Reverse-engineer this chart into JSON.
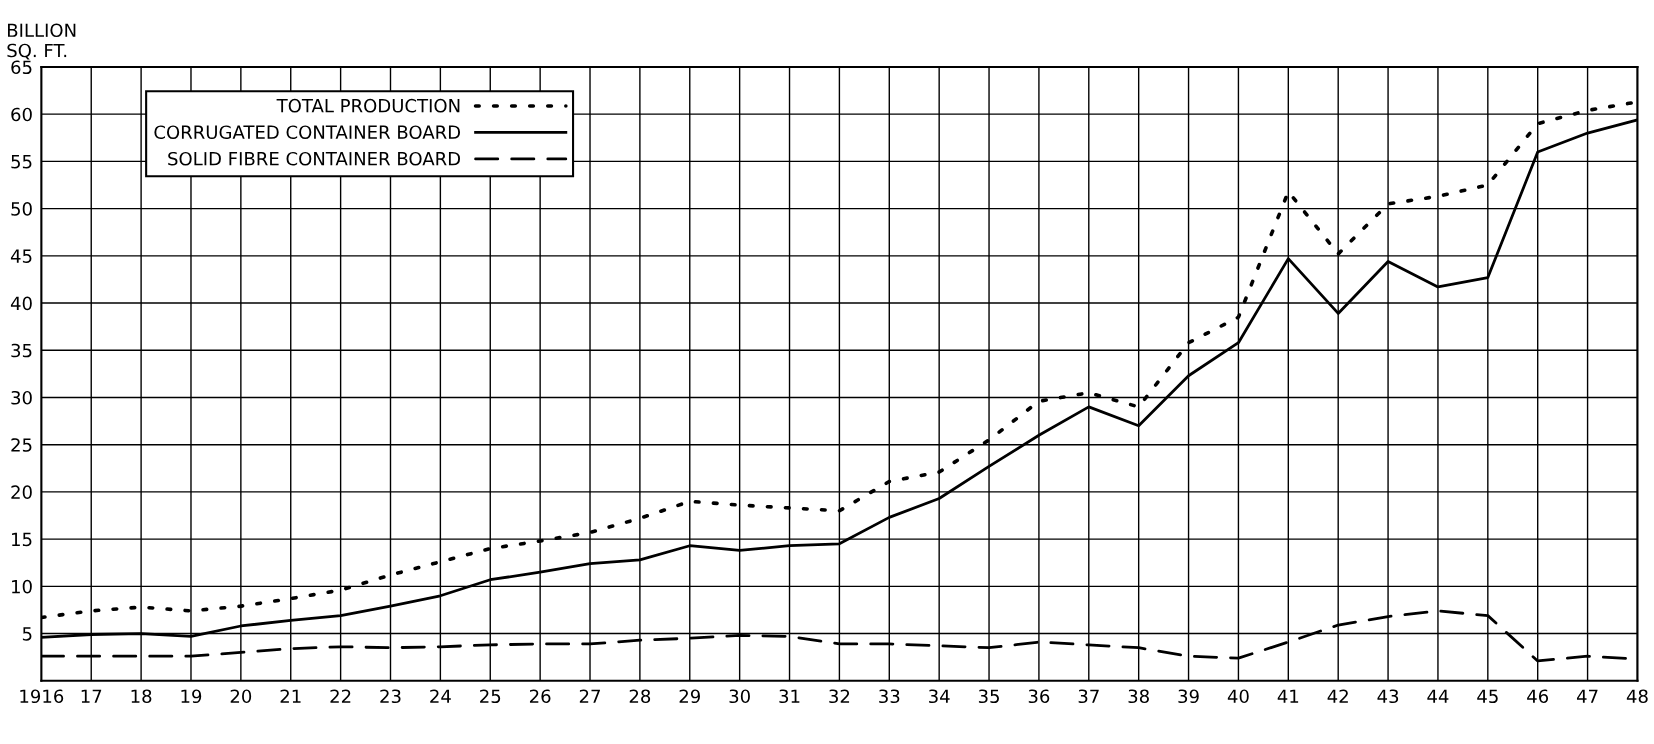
{
  "chart_data": {
    "type": "line",
    "ylabel": "BILLION\nSQ. FT.",
    "x": [
      1916,
      1917,
      1918,
      1919,
      1920,
      1921,
      1922,
      1923,
      1924,
      1925,
      1926,
      1927,
      1928,
      1929,
      1930,
      1931,
      1932,
      1933,
      1934,
      1935,
      1936,
      1937,
      1938,
      1939,
      1940,
      1941,
      1942,
      1943,
      1944,
      1945,
      1946,
      1947,
      1948
    ],
    "series": [
      {
        "name": "TOTAL PRODUCTION",
        "color": "#000000",
        "line_style": "dotted",
        "values": [
          6.7,
          7.4,
          7.8,
          7.4,
          7.9,
          8.7,
          9.6,
          11.2,
          12.6,
          14.0,
          14.8,
          15.7,
          17.2,
          19.0,
          18.6,
          18.3,
          18.0,
          21.1,
          22.1,
          25.5,
          29.6,
          30.5,
          29.0,
          35.8,
          38.5,
          51.8,
          45.2,
          50.5,
          51.3,
          52.5,
          59.0,
          60.4,
          61.3
        ]
      },
      {
        "name": "CORRUGATED CONTAINER BOARD",
        "color": "#000000",
        "line_style": "solid",
        "values": [
          4.6,
          4.9,
          5.0,
          4.7,
          5.8,
          6.4,
          6.9,
          7.9,
          9.0,
          10.7,
          11.5,
          12.4,
          12.8,
          14.3,
          13.8,
          14.3,
          14.5,
          17.3,
          19.3,
          22.7,
          26.0,
          29.0,
          27.0,
          32.3,
          35.8,
          44.7,
          38.9,
          44.4,
          41.7,
          42.7,
          56.0,
          58.0,
          59.4
        ]
      },
      {
        "name": "SOLID FIBRE CONTAINER BOARD",
        "color": "#000000",
        "line_style": "dashed",
        "values": [
          2.6,
          2.6,
          2.6,
          2.6,
          3.0,
          3.4,
          3.6,
          3.5,
          3.6,
          3.8,
          3.9,
          3.9,
          4.3,
          4.5,
          4.8,
          4.7,
          3.9,
          3.9,
          3.7,
          3.5,
          4.1,
          3.8,
          3.5,
          2.6,
          2.4,
          4.1,
          5.9,
          6.8,
          7.4,
          6.9,
          2.1,
          2.6,
          2.3
        ]
      }
    ],
    "xlim": [
      1916,
      1948
    ],
    "xticks": [
      {
        "value": 1916,
        "label": "1916"
      },
      {
        "value": 1917,
        "label": "17"
      },
      {
        "value": 1918,
        "label": "18"
      },
      {
        "value": 1919,
        "label": "19"
      },
      {
        "value": 1920,
        "label": "20"
      },
      {
        "value": 1921,
        "label": "21"
      },
      {
        "value": 1922,
        "label": "22"
      },
      {
        "value": 1923,
        "label": "23"
      },
      {
        "value": 1924,
        "label": "24"
      },
      {
        "value": 1925,
        "label": "25"
      },
      {
        "value": 1926,
        "label": "26"
      },
      {
        "value": 1927,
        "label": "27"
      },
      {
        "value": 1928,
        "label": "28"
      },
      {
        "value": 1929,
        "label": "29"
      },
      {
        "value": 1930,
        "label": "30"
      },
      {
        "value": 1931,
        "label": "31"
      },
      {
        "value": 1932,
        "label": "32"
      },
      {
        "value": 1933,
        "label": "33"
      },
      {
        "value": 1934,
        "label": "34"
      },
      {
        "value": 1935,
        "label": "35"
      },
      {
        "value": 1936,
        "label": "36"
      },
      {
        "value": 1937,
        "label": "37"
      },
      {
        "value": 1938,
        "label": "38"
      },
      {
        "value": 1939,
        "label": "39"
      },
      {
        "value": 1940,
        "label": "40"
      },
      {
        "value": 1941,
        "label": "41"
      },
      {
        "value": 1942,
        "label": "42"
      },
      {
        "value": 1943,
        "label": "43"
      },
      {
        "value": 1944,
        "label": "44"
      },
      {
        "value": 1945,
        "label": "45"
      },
      {
        "value": 1946,
        "label": "46"
      },
      {
        "value": 1947,
        "label": "47"
      },
      {
        "value": 1948,
        "label": "48"
      }
    ],
    "ylim": [
      0,
      65
    ],
    "yticks": [
      5,
      10,
      15,
      20,
      25,
      30,
      35,
      40,
      45,
      50,
      55,
      60,
      65
    ],
    "grid": true,
    "legend": "top left",
    "marker": "none"
  }
}
